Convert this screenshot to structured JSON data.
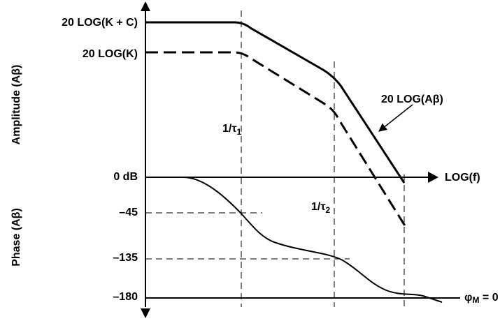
{
  "labels": {
    "k_plus_c": "20 LOG(K + C)",
    "k": "20 LOG(K)",
    "amplitude_axis": "Amplitude (Aβ)",
    "phase_axis": "Phase (Aβ)",
    "tau1": {
      "text": "1/τ",
      "sub": "1"
    },
    "tau2": {
      "text": "1/τ",
      "sub": "2"
    },
    "curve": "20 LOG(Aβ)",
    "zero_db": "0 dB",
    "freq_axis": "LOG(f)",
    "phase_45": "–45",
    "phase_135": "–135",
    "phase_180": "–180",
    "margin": {
      "text": "φ",
      "sub": "M",
      "rest": " = 0"
    }
  }
}
